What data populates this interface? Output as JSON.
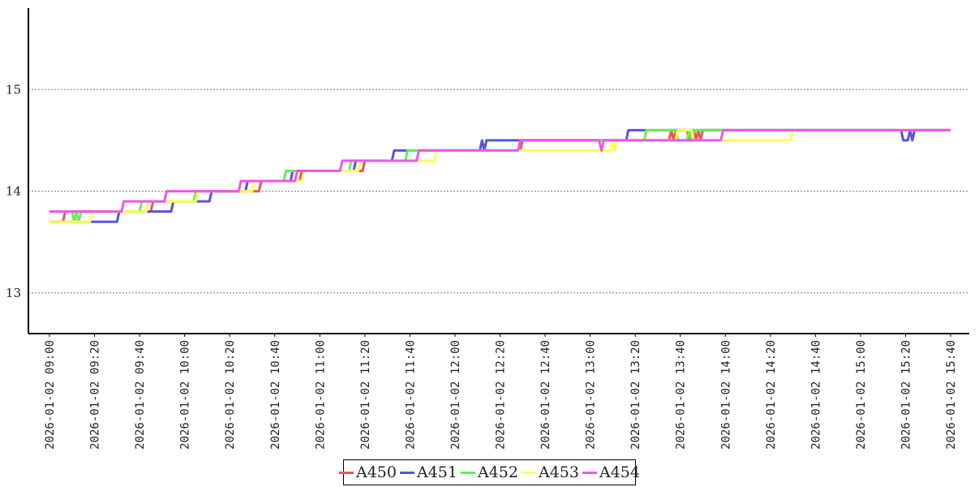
{
  "chart_data": {
    "type": "line",
    "title": "",
    "xlabel": "",
    "ylabel": "",
    "ylim": [
      12.6,
      15.8
    ],
    "xlim": [
      "2026-01-02 09:00",
      "2026-01-02 15:40"
    ],
    "grid": "horizontal dotted",
    "legend_position": "bottom-center",
    "y_ticks": [
      "13",
      "14",
      "15"
    ],
    "x_ticks": [
      "2026-01-02  09:00",
      "2026-01-02  09:20",
      "2026-01-02  09:40",
      "2026-01-02  10:00",
      "2026-01-02  10:20",
      "2026-01-02  10:40",
      "2026-01-02  11:00",
      "2026-01-02  11:20",
      "2026-01-02  11:40",
      "2026-01-02  12:00",
      "2026-01-02  12:20",
      "2026-01-02  12:40",
      "2026-01-02  13:00",
      "2026-01-02  13:20",
      "2026-01-02  13:40",
      "2026-01-02  14:00",
      "2026-01-02  14:20",
      "2026-01-02  14:40",
      "2026-01-02  15:00",
      "2026-01-02  15:20",
      "2026-01-02  15:40"
    ],
    "series": [
      {
        "name": "A450",
        "color": "#ee5555",
        "points": [
          [
            "2026-01-02 09:00",
            13.7
          ],
          [
            "2026-01-02 09:06",
            13.7
          ],
          [
            "2026-01-02 09:07",
            13.8
          ],
          [
            "2026-01-02 09:45",
            13.8
          ],
          [
            "2026-01-02 09:46",
            13.9
          ],
          [
            "2026-01-02 10:05",
            13.9
          ],
          [
            "2026-01-02 10:06",
            14.0
          ],
          [
            "2026-01-02 10:33",
            14.0
          ],
          [
            "2026-01-02 10:34",
            14.1
          ],
          [
            "2026-01-02 10:51",
            14.1
          ],
          [
            "2026-01-02 10:52",
            14.2
          ],
          [
            "2026-01-02 11:19",
            14.2
          ],
          [
            "2026-01-02 11:20",
            14.3
          ],
          [
            "2026-01-02 11:43",
            14.3
          ],
          [
            "2026-01-02 11:44",
            14.4
          ],
          [
            "2026-01-02 12:29",
            14.4
          ],
          [
            "2026-01-02 12:30",
            14.5
          ],
          [
            "2026-01-02 13:35",
            14.5
          ],
          [
            "2026-01-02 13:36",
            14.6
          ],
          [
            "2026-01-02 13:37",
            14.5
          ],
          [
            "2026-01-02 13:38",
            14.6
          ],
          [
            "2026-01-02 13:43",
            14.6
          ],
          [
            "2026-01-02 13:44",
            14.5
          ],
          [
            "2026-01-02 13:45",
            14.6
          ],
          [
            "2026-01-02 13:46",
            14.6
          ],
          [
            "2026-01-02 13:47",
            14.5
          ],
          [
            "2026-01-02 13:48",
            14.6
          ],
          [
            "2026-01-02 13:49",
            14.5
          ],
          [
            "2026-01-02 13:50",
            14.6
          ],
          [
            "2026-01-02 15:40",
            14.6
          ]
        ]
      },
      {
        "name": "A451",
        "color": "#5555dd",
        "points": [
          [
            "2026-01-02 09:00",
            13.7
          ],
          [
            "2026-01-02 09:30",
            13.7
          ],
          [
            "2026-01-02 09:31",
            13.8
          ],
          [
            "2026-01-02 09:54",
            13.8
          ],
          [
            "2026-01-02 09:55",
            13.9
          ],
          [
            "2026-01-02 10:11",
            13.9
          ],
          [
            "2026-01-02 10:12",
            14.0
          ],
          [
            "2026-01-02 10:27",
            14.0
          ],
          [
            "2026-01-02 10:28",
            14.1
          ],
          [
            "2026-01-02 10:47",
            14.1
          ],
          [
            "2026-01-02 10:48",
            14.2
          ],
          [
            "2026-01-02 11:15",
            14.2
          ],
          [
            "2026-01-02 11:16",
            14.3
          ],
          [
            "2026-01-02 11:32",
            14.3
          ],
          [
            "2026-01-02 11:33",
            14.4
          ],
          [
            "2026-01-02 12:11",
            14.4
          ],
          [
            "2026-01-02 12:12",
            14.5
          ],
          [
            "2026-01-02 12:13",
            14.4
          ],
          [
            "2026-01-02 12:14",
            14.5
          ],
          [
            "2026-01-02 13:16",
            14.5
          ],
          [
            "2026-01-02 13:17",
            14.6
          ],
          [
            "2026-01-02 15:18",
            14.6
          ],
          [
            "2026-01-02 15:19",
            14.5
          ],
          [
            "2026-01-02 15:21",
            14.5
          ],
          [
            "2026-01-02 15:22",
            14.6
          ],
          [
            "2026-01-02 15:23",
            14.5
          ],
          [
            "2026-01-02 15:24",
            14.6
          ],
          [
            "2026-01-02 15:40",
            14.6
          ]
        ]
      },
      {
        "name": "A452",
        "color": "#66ee55",
        "points": [
          [
            "2026-01-02 09:00",
            13.8
          ],
          [
            "2026-01-02 09:10",
            13.8
          ],
          [
            "2026-01-02 09:11",
            13.7
          ],
          [
            "2026-01-02 09:12",
            13.8
          ],
          [
            "2026-01-02 09:13",
            13.7
          ],
          [
            "2026-01-02 09:14",
            13.8
          ],
          [
            "2026-01-02 09:40",
            13.8
          ],
          [
            "2026-01-02 09:41",
            13.9
          ],
          [
            "2026-01-02 10:04",
            13.9
          ],
          [
            "2026-01-02 10:05",
            14.0
          ],
          [
            "2026-01-02 10:24",
            14.0
          ],
          [
            "2026-01-02 10:25",
            14.1
          ],
          [
            "2026-01-02 10:44",
            14.1
          ],
          [
            "2026-01-02 10:45",
            14.2
          ],
          [
            "2026-01-02 11:13",
            14.2
          ],
          [
            "2026-01-02 11:14",
            14.3
          ],
          [
            "2026-01-02 11:38",
            14.3
          ],
          [
            "2026-01-02 11:39",
            14.4
          ],
          [
            "2026-01-02 12:28",
            14.4
          ],
          [
            "2026-01-02 12:29",
            14.5
          ],
          [
            "2026-01-02 13:24",
            14.5
          ],
          [
            "2026-01-02 13:25",
            14.6
          ],
          [
            "2026-01-02 13:38",
            14.6
          ],
          [
            "2026-01-02 13:39",
            14.5
          ],
          [
            "2026-01-02 13:43",
            14.5
          ],
          [
            "2026-01-02 13:44",
            14.6
          ],
          [
            "2026-01-02 13:45",
            14.5
          ],
          [
            "2026-01-02 13:46",
            14.6
          ],
          [
            "2026-01-02 15:40",
            14.6
          ]
        ]
      },
      {
        "name": "A453",
        "color": "#ffff55",
        "points": [
          [
            "2026-01-02 09:00",
            13.7
          ],
          [
            "2026-01-02 09:18",
            13.7
          ],
          [
            "2026-01-02 09:19",
            13.8
          ],
          [
            "2026-01-02 09:43",
            13.8
          ],
          [
            "2026-01-02 09:44",
            13.9
          ],
          [
            "2026-01-02 10:05",
            13.9
          ],
          [
            "2026-01-02 10:06",
            14.0
          ],
          [
            "2026-01-02 10:30",
            14.0
          ],
          [
            "2026-01-02 10:31",
            14.1
          ],
          [
            "2026-01-02 10:52",
            14.1
          ],
          [
            "2026-01-02 10:53",
            14.2
          ],
          [
            "2026-01-02 11:17",
            14.2
          ],
          [
            "2026-01-02 11:18",
            14.3
          ],
          [
            "2026-01-02 11:51",
            14.3
          ],
          [
            "2026-01-02 11:52",
            14.4
          ],
          [
            "2026-01-02 12:28",
            14.4
          ],
          [
            "2026-01-02 12:29",
            14.4
          ],
          [
            "2026-01-02 13:09",
            14.4
          ],
          [
            "2026-01-02 13:10",
            14.5
          ],
          [
            "2026-01-02 13:11",
            14.4
          ],
          [
            "2026-01-02 13:12",
            14.5
          ],
          [
            "2026-01-02 13:38",
            14.5
          ],
          [
            "2026-01-02 13:39",
            14.6
          ],
          [
            "2026-01-02 13:45",
            14.6
          ],
          [
            "2026-01-02 13:46",
            14.5
          ],
          [
            "2026-01-02 14:29",
            14.5
          ],
          [
            "2026-01-02 14:30",
            14.6
          ],
          [
            "2026-01-02 15:40",
            14.6
          ]
        ]
      },
      {
        "name": "A454",
        "color": "#ee55ee",
        "points": [
          [
            "2026-01-02 09:00",
            13.8
          ],
          [
            "2026-01-02 09:32",
            13.8
          ],
          [
            "2026-01-02 09:33",
            13.9
          ],
          [
            "2026-01-02 09:51",
            13.9
          ],
          [
            "2026-01-02 09:52",
            14.0
          ],
          [
            "2026-01-02 10:24",
            14.0
          ],
          [
            "2026-01-02 10:25",
            14.1
          ],
          [
            "2026-01-02 10:49",
            14.1
          ],
          [
            "2026-01-02 10:50",
            14.2
          ],
          [
            "2026-01-02 11:09",
            14.2
          ],
          [
            "2026-01-02 11:10",
            14.3
          ],
          [
            "2026-01-02 11:43",
            14.3
          ],
          [
            "2026-01-02 11:44",
            14.4
          ],
          [
            "2026-01-02 12:28",
            14.4
          ],
          [
            "2026-01-02 12:29",
            14.5
          ],
          [
            "2026-01-02 13:04",
            14.5
          ],
          [
            "2026-01-02 13:05",
            14.4
          ],
          [
            "2026-01-02 13:06",
            14.5
          ],
          [
            "2026-01-02 13:58",
            14.5
          ],
          [
            "2026-01-02 13:59",
            14.6
          ],
          [
            "2026-01-02 15:40",
            14.6
          ]
        ]
      }
    ]
  }
}
